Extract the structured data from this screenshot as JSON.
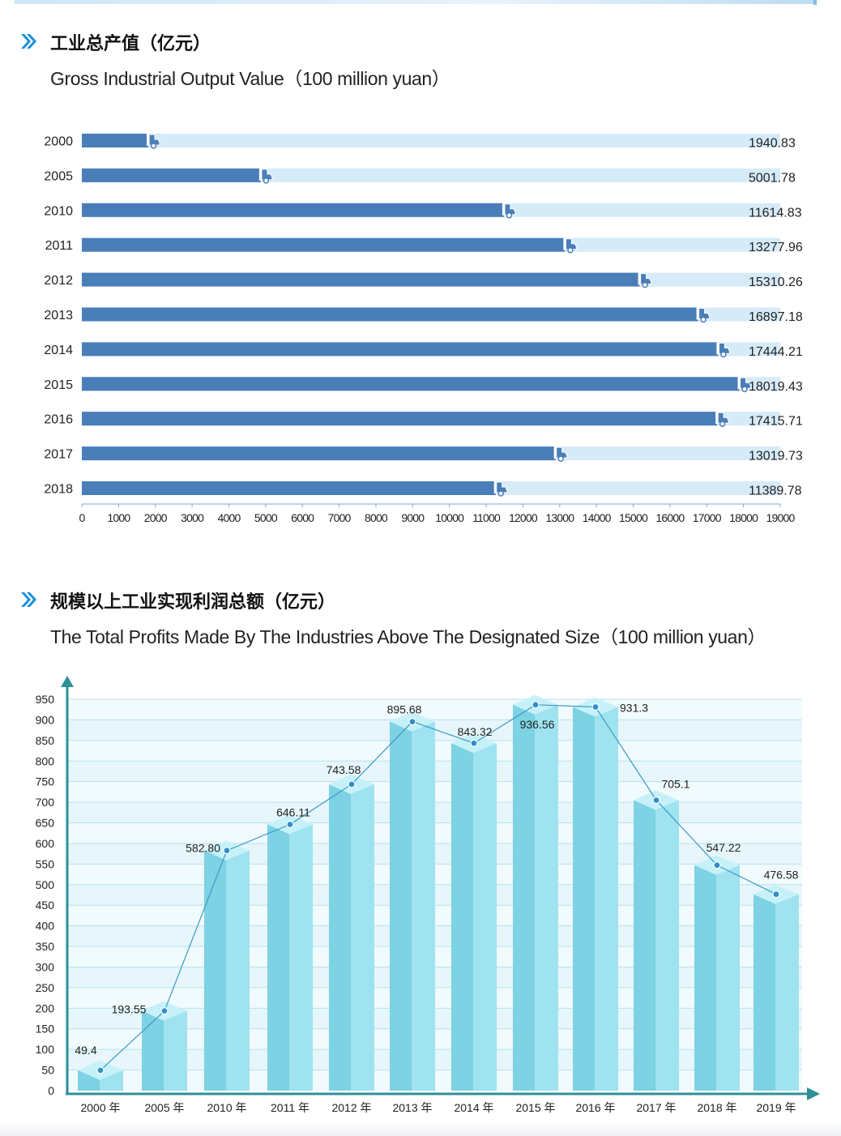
{
  "colors": {
    "bar_dark": "#4a7eb9",
    "bar_track": "#d6ebf8",
    "column_front": "#9fe2f0",
    "column_side": "#7dd2e3",
    "column_top": "#c6f1f8",
    "axis": "#2f8f97",
    "line": "#3d9ac6",
    "chevron": "#1a8fd9"
  },
  "section1": {
    "title_zh": "工业总产值（亿元）",
    "title_en": "Gross Industrial Output Value（100 million yuan）"
  },
  "section2": {
    "title_zh": "规模以上工业实现利润总额（亿元）",
    "title_en": "The Total Profits Made By The Industries Above The Designated Size（100 million yuan）"
  },
  "chart_data": [
    {
      "type": "bar",
      "orientation": "horizontal",
      "categories": [
        "2000",
        "2005",
        "2010",
        "2011",
        "2012",
        "2013",
        "2014",
        "2015",
        "2016",
        "2017",
        "2018"
      ],
      "values": [
        1940.83,
        5001.78,
        11614.83,
        13277.96,
        15310.26,
        16897.18,
        17444.21,
        18019.43,
        17415.71,
        13019.73,
        11389.78
      ],
      "value_labels": [
        "1940.83",
        "5001.78",
        "11614.83",
        "13277.96",
        "15310.26",
        "16897.18",
        "17444.21",
        "18019.43",
        "17415.71",
        "13019.73",
        "11389.78"
      ],
      "xlim": [
        0,
        19000
      ],
      "xticks": [
        0,
        1000,
        2000,
        3000,
        4000,
        5000,
        6000,
        7000,
        8000,
        9000,
        10000,
        11000,
        12000,
        13000,
        14000,
        15000,
        16000,
        17000,
        18000,
        19000
      ],
      "grid": false,
      "marker_icon": "truck-icon"
    },
    {
      "type": "bar",
      "style": "3d-column-with-line",
      "categories": [
        "2000 年",
        "2005 年",
        "2010 年",
        "2011 年",
        "2012 年",
        "2013 年",
        "2014 年",
        "2015 年",
        "2016 年",
        "2017 年",
        "2018 年",
        "2019 年"
      ],
      "values": [
        49.4,
        193.55,
        582.8,
        646.11,
        743.58,
        895.68,
        843.32,
        936.56,
        931.3,
        705.1,
        547.22,
        476.58
      ],
      "value_labels": [
        "49.4",
        "193.55",
        "582.80",
        "646.11",
        "743.58",
        "895.68",
        "843.32",
        "936.56",
        "931.3",
        "705.1",
        "547.22",
        "476.58"
      ],
      "ylim": [
        0,
        950
      ],
      "yticks": [
        0,
        50,
        100,
        150,
        200,
        250,
        300,
        350,
        400,
        450,
        500,
        550,
        600,
        650,
        700,
        750,
        800,
        850,
        900,
        950
      ],
      "grid": true
    }
  ]
}
